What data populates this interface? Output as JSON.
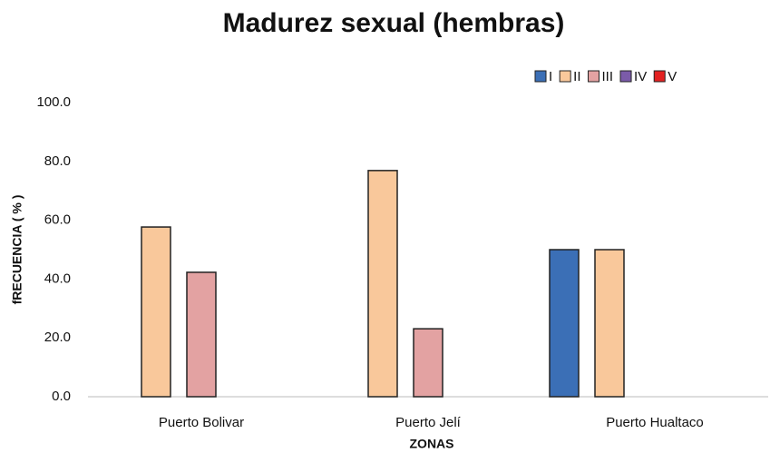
{
  "chart_data": {
    "type": "bar",
    "title": "Madurez sexual (hembras)",
    "x_label": "ZONAS",
    "y_label": "fRECUENCIA ( % )",
    "categories": [
      "Puerto Bolivar",
      "Puerto Jelí",
      "Puerto Hualtaco"
    ],
    "series": [
      {
        "name": "I",
        "color": "#3b6fb6",
        "values": [
          0,
          0,
          50.0
        ]
      },
      {
        "name": "II",
        "color": "#f9c89b",
        "values": [
          57.7,
          76.9,
          50.0
        ]
      },
      {
        "name": "III",
        "color": "#e3a2a2",
        "values": [
          42.3,
          23.1,
          0
        ]
      },
      {
        "name": "IV",
        "color": "#7b5ba9",
        "values": [
          0,
          0,
          0
        ]
      },
      {
        "name": "V",
        "color": "#e32222",
        "values": [
          0,
          0,
          0
        ]
      }
    ],
    "ylim": [
      0,
      100
    ],
    "yticks": [
      {
        "value": 0,
        "label": "0.0"
      },
      {
        "value": 20,
        "label": "20.0"
      },
      {
        "value": 40,
        "label": "40.0"
      },
      {
        "value": 60,
        "label": "60.0"
      },
      {
        "value": 80,
        "label": "80.0"
      },
      {
        "value": 100,
        "label": "100.0"
      }
    ],
    "legend": "top-right"
  }
}
